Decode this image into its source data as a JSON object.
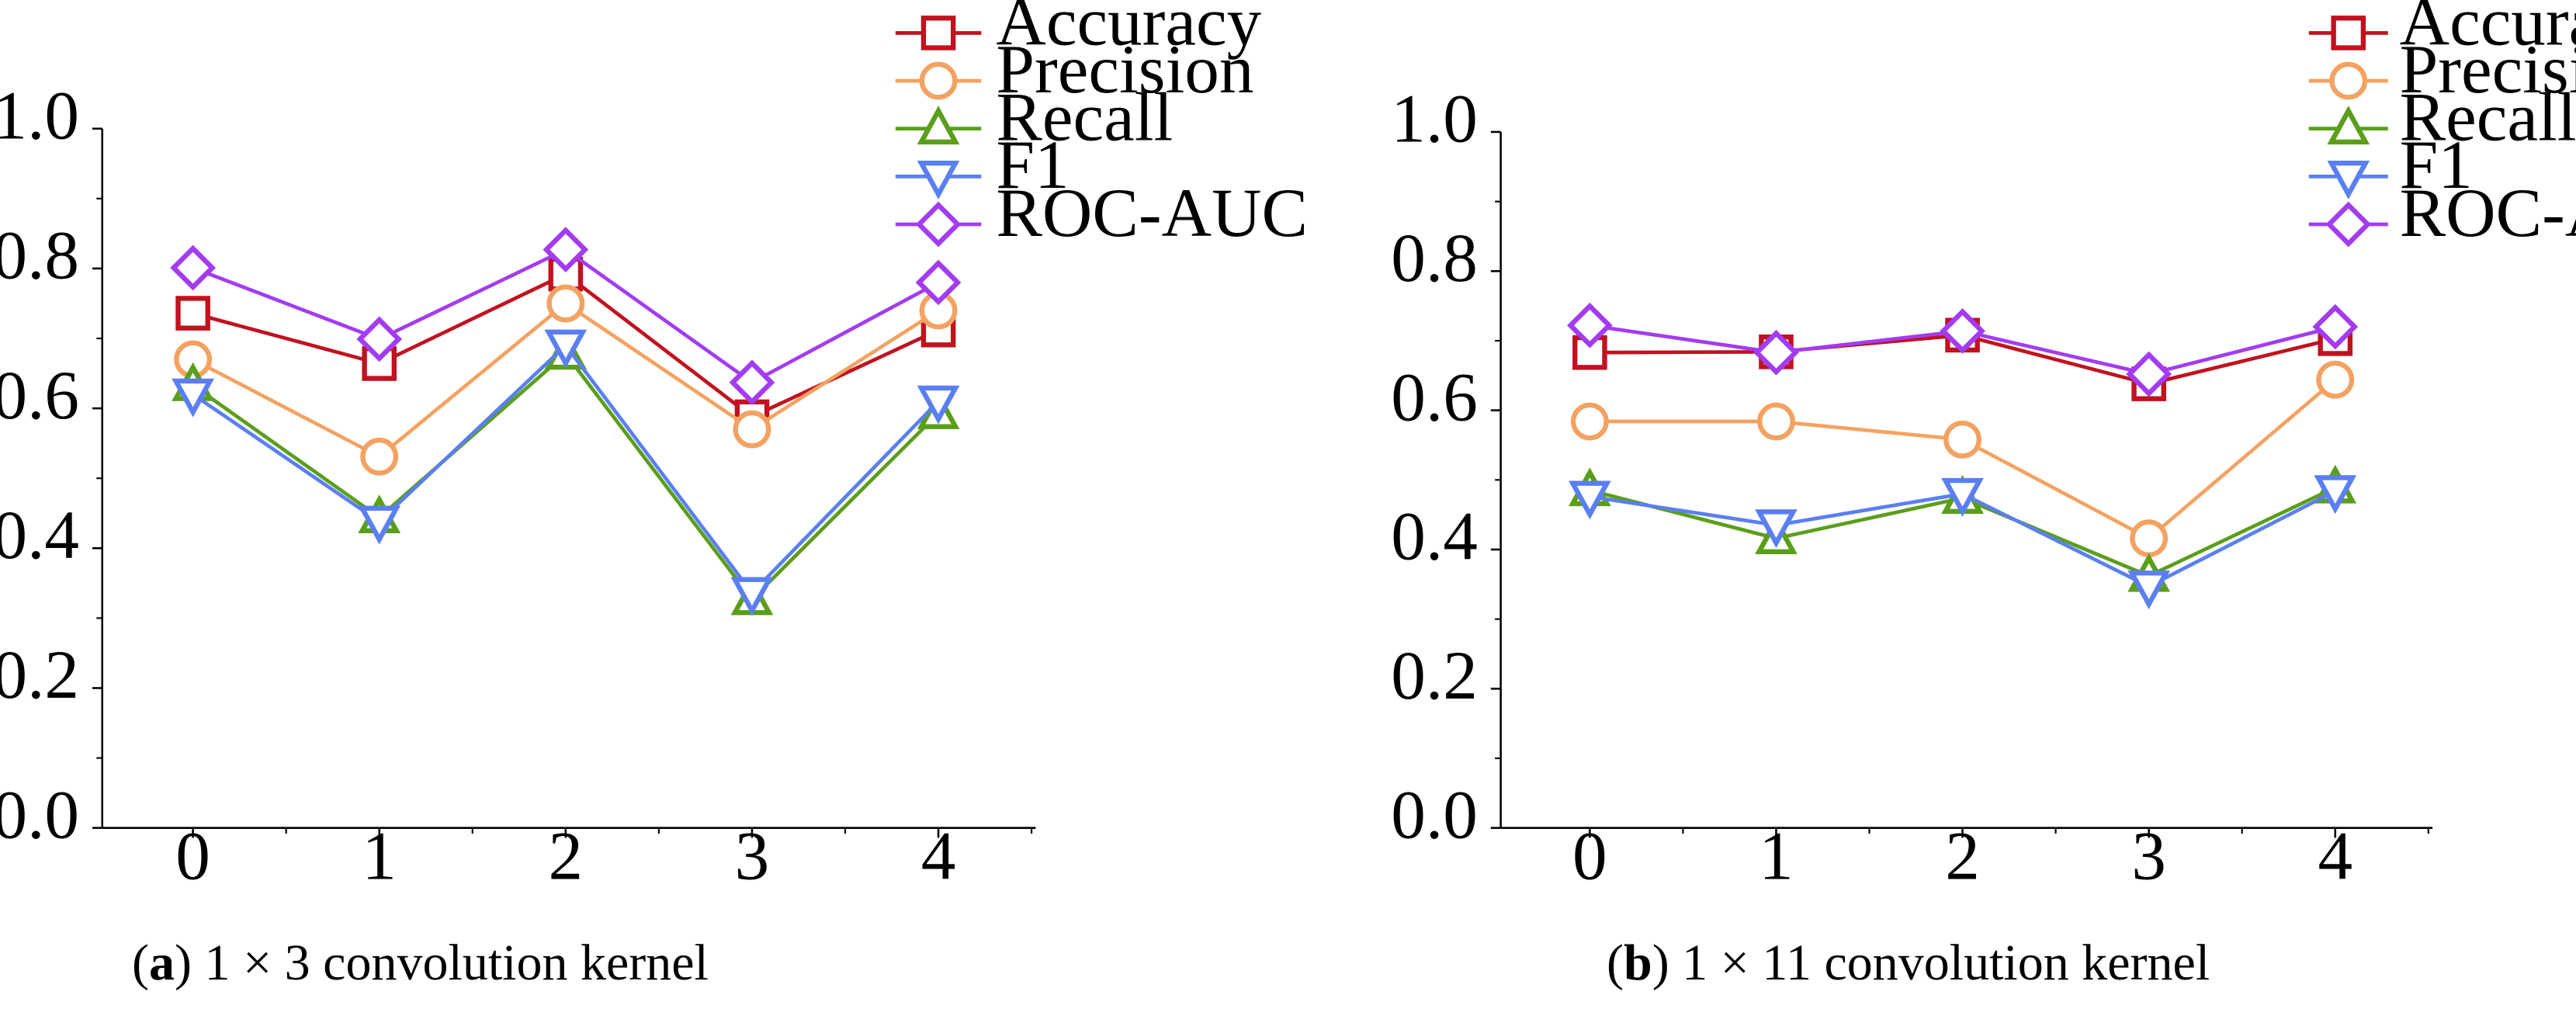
{
  "chart_data": [
    {
      "type": "line",
      "caption": {
        "open": "(",
        "letter": "a",
        "rest": ") 1 × 3 convolution kernel"
      },
      "title": "",
      "xlabel": "",
      "ylabel": "",
      "categories": [
        "0",
        "1",
        "2",
        "3",
        "4"
      ],
      "ylim": [
        0.0,
        1.0
      ],
      "yticks": [
        "0.0",
        "0.2",
        "0.4",
        "0.6",
        "0.8",
        "1.0"
      ],
      "grid": false,
      "legend_position": "top-right",
      "series": [
        {
          "name": "Accuracy",
          "color": "#c1121f",
          "marker": "square",
          "values": [
            0.736,
            0.664,
            0.792,
            0.588,
            0.712
          ]
        },
        {
          "name": "Precision",
          "color": "#f4a261",
          "marker": "circle",
          "values": [
            0.67,
            0.531,
            0.75,
            0.57,
            0.74
          ]
        },
        {
          "name": "Recall",
          "color": "#5a9e1a",
          "marker": "triangle-up",
          "values": [
            0.633,
            0.444,
            0.678,
            0.327,
            0.593
          ]
        },
        {
          "name": "F1",
          "color": "#5b7ff2",
          "marker": "triangle-down",
          "values": [
            0.62,
            0.438,
            0.69,
            0.336,
            0.61
          ]
        },
        {
          "name": "ROC-AUC",
          "color": "#a33cf0",
          "marker": "diamond",
          "values": [
            0.801,
            0.699,
            0.827,
            0.637,
            0.78
          ]
        }
      ]
    },
    {
      "type": "line",
      "caption": {
        "open": "(",
        "letter": "b",
        "rest": ") 1 × 11 convolution kernel"
      },
      "title": "",
      "xlabel": "",
      "ylabel": "",
      "categories": [
        "0",
        "1",
        "2",
        "3",
        "4"
      ],
      "ylim": [
        0.0,
        1.0
      ],
      "yticks": [
        "0.0",
        "0.2",
        "0.4",
        "0.6",
        "0.8",
        "1.0"
      ],
      "grid": false,
      "legend_position": "top-right",
      "series": [
        {
          "name": "Accuracy",
          "color": "#c1121f",
          "marker": "square",
          "values": [
            0.683,
            0.684,
            0.708,
            0.638,
            0.703
          ]
        },
        {
          "name": "Precision",
          "color": "#f4a261",
          "marker": "circle",
          "values": [
            0.584,
            0.584,
            0.558,
            0.416,
            0.644
          ]
        },
        {
          "name": "Recall",
          "color": "#5a9e1a",
          "marker": "triangle-up",
          "values": [
            0.485,
            0.416,
            0.474,
            0.362,
            0.489
          ]
        },
        {
          "name": "F1",
          "color": "#5b7ff2",
          "marker": "triangle-down",
          "values": [
            0.476,
            0.435,
            0.48,
            0.347,
            0.484
          ]
        },
        {
          "name": "ROC-AUC",
          "color": "#a33cf0",
          "marker": "diamond",
          "values": [
            0.722,
            0.683,
            0.714,
            0.652,
            0.72
          ]
        }
      ]
    }
  ]
}
